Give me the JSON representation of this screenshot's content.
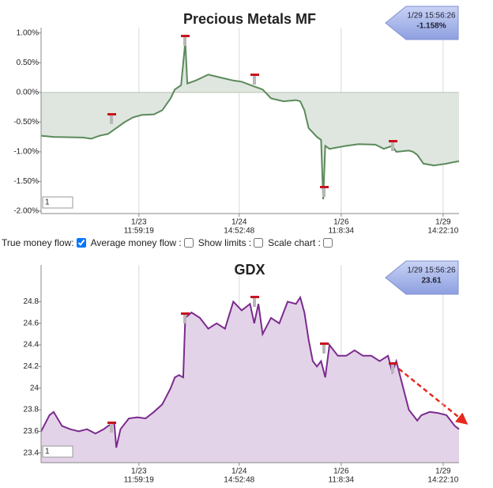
{
  "controls": [
    {
      "label": "True money flow:"
    },
    {
      "label": "Average money flow :"
    },
    {
      "label": "Show limits :"
    },
    {
      "label": "Scale chart :"
    }
  ],
  "chart_data": [
    {
      "type": "area",
      "title": "Precious Metals MF",
      "title_color": "#5b8c5a",
      "annotation": [
        "1/29 15:56:26",
        "-1.158%"
      ],
      "input_value": "1",
      "x": [
        0,
        3,
        10,
        12,
        14,
        16,
        18,
        20,
        22,
        24,
        27,
        29,
        31,
        32,
        33.5,
        34.5,
        35,
        37,
        40,
        43,
        46,
        48,
        51,
        53,
        55,
        58,
        61,
        62,
        63,
        64,
        66,
        67,
        67.5,
        68,
        69,
        73,
        76,
        80,
        82,
        84,
        85,
        88,
        89,
        90,
        91.5,
        94,
        97,
        99,
        100
      ],
      "series": [
        {
          "name": "Precious Metals MF",
          "color": "#5b8a5b",
          "fill_color": "#dfe6df",
          "values": [
            -0.73,
            -0.75,
            -0.76,
            -0.78,
            -0.73,
            -0.7,
            -0.6,
            -0.5,
            -0.42,
            -0.38,
            -0.37,
            -0.3,
            -0.1,
            0.05,
            0.12,
            0.85,
            0.15,
            0.2,
            0.3,
            0.25,
            0.2,
            0.18,
            0.1,
            0.05,
            -0.1,
            -0.15,
            -0.13,
            -0.15,
            -0.3,
            -0.6,
            -0.75,
            -0.8,
            -1.8,
            -0.9,
            -0.95,
            -0.9,
            -0.87,
            -0.88,
            -0.95,
            -0.9,
            -1.0,
            -0.98,
            -1.0,
            -1.05,
            -1.2,
            -1.23,
            -1.2,
            -1.17,
            -1.16
          ]
        }
      ],
      "xlim": [
        0,
        100
      ],
      "xticks": [
        {
          "value": 23.4,
          "label": [
            "1/23",
            "11:59:19"
          ]
        },
        {
          "value": 47.4,
          "label": [
            "1/24",
            "14:52:48"
          ]
        },
        {
          "value": 71.8,
          "label": [
            "1/26",
            "11:8:34"
          ]
        },
        {
          "value": 96.2,
          "label": [
            "1/29",
            "14:22:10"
          ]
        }
      ],
      "ylim": [
        -2.04,
        1.09
      ],
      "yticks": [
        {
          "value": 1.0,
          "label": "1.00%"
        },
        {
          "value": 0.5,
          "label": "0.50%"
        },
        {
          "value": 0,
          "label": "0.00%"
        },
        {
          "value": -0.5,
          "label": "-0.50%"
        },
        {
          "value": -1.0,
          "label": "-1.00%"
        },
        {
          "value": -1.5,
          "label": "-1.50%"
        },
        {
          "value": -2.0,
          "label": "-2.00%"
        }
      ],
      "grid": true
    },
    {
      "type": "area",
      "title": "GDX",
      "title_color": "#7b2b8e",
      "annotation": [
        "1/29 15:56:26",
        "23.61"
      ],
      "input_value": "1",
      "x": [
        0,
        2,
        3,
        5,
        7,
        9,
        11,
        13,
        15,
        16,
        17.5,
        18,
        19,
        21,
        23,
        25,
        27,
        29,
        31,
        32,
        33,
        34,
        34.5,
        36,
        38,
        40,
        42,
        44,
        46,
        48,
        50,
        51,
        52,
        53,
        55,
        57,
        59,
        61,
        62,
        63,
        64,
        65,
        66,
        67,
        68,
        69,
        71,
        73,
        75,
        77,
        79,
        81,
        83,
        84,
        85,
        86,
        87,
        88,
        89,
        90,
        91,
        93,
        95,
        97,
        98,
        99,
        100
      ],
      "series": [
        {
          "name": "GDX",
          "color": "#7b2b8e",
          "fill_color": "#e3d3e8",
          "values": [
            23.6,
            23.75,
            23.78,
            23.65,
            23.62,
            23.6,
            23.62,
            23.58,
            23.62,
            23.65,
            23.68,
            23.45,
            23.62,
            23.72,
            23.73,
            23.72,
            23.78,
            23.85,
            24.0,
            24.1,
            24.12,
            24.1,
            24.65,
            24.7,
            24.65,
            24.55,
            24.6,
            24.55,
            24.8,
            24.72,
            24.78,
            24.6,
            24.78,
            24.5,
            24.65,
            24.6,
            24.8,
            24.78,
            24.84,
            24.7,
            24.45,
            24.25,
            24.2,
            24.25,
            24.1,
            24.4,
            24.3,
            24.3,
            24.35,
            24.3,
            24.3,
            24.25,
            24.3,
            24.15,
            24.25,
            24.1,
            23.95,
            23.8,
            23.75,
            23.7,
            23.75,
            23.78,
            23.77,
            23.75,
            23.7,
            23.65,
            23.62
          ]
        }
      ],
      "xlim": [
        0,
        100
      ],
      "xticks": [
        {
          "value": 23.4,
          "label": [
            "1/23",
            "11:59:19"
          ]
        },
        {
          "value": 47.4,
          "label": [
            "1/24",
            "14:52:48"
          ]
        },
        {
          "value": 71.8,
          "label": [
            "1/26",
            "11:8:34"
          ]
        },
        {
          "value": 96.2,
          "label": [
            "1/29",
            "14:22:10"
          ]
        }
      ],
      "ylim": [
        23.31,
        25.14
      ],
      "yticks": [
        23.4,
        23.6,
        23.8,
        24,
        24.2,
        24.4,
        24.6,
        24.8
      ],
      "grid": true
    }
  ]
}
